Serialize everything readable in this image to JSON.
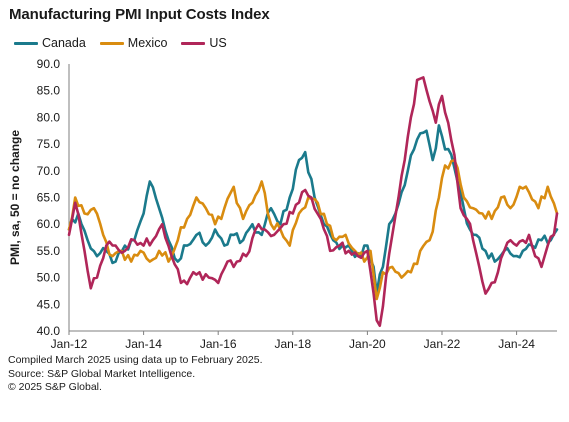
{
  "chart_data": {
    "type": "line",
    "title": "Manufacturing PMI Input Costs Index",
    "ylabel": "PMI, sa, 50 = no change",
    "xlabel": "",
    "ylim": [
      40,
      90
    ],
    "yticks": [
      "40.0",
      "45.0",
      "50.0",
      "55.0",
      "60.0",
      "65.0",
      "70.0",
      "75.0",
      "80.0",
      "85.0",
      "90.0"
    ],
    "xtick_labels": [
      "Jan-12",
      "Jan-14",
      "Jan-16",
      "Jan-18",
      "Jan-20",
      "Jan-22",
      "Jan-24"
    ],
    "x_start": "2012-01",
    "x_end": "2025-02",
    "grid": false,
    "legend_position": "top-left",
    "series": [
      {
        "name": "Canada",
        "color": "#1b7a8c",
        "key_points": [
          [
            "2012-01",
            59
          ],
          [
            "2012-04",
            62
          ],
          [
            "2012-07",
            57
          ],
          [
            "2012-10",
            54
          ],
          [
            "2013-01",
            55
          ],
          [
            "2013-04",
            53
          ],
          [
            "2013-07",
            56
          ],
          [
            "2013-10",
            57
          ],
          [
            "2014-01",
            62
          ],
          [
            "2014-03",
            68
          ],
          [
            "2014-06",
            63
          ],
          [
            "2014-09",
            57
          ],
          [
            "2014-12",
            53
          ],
          [
            "2015-03",
            56
          ],
          [
            "2015-06",
            58
          ],
          [
            "2015-09",
            56
          ],
          [
            "2015-12",
            59
          ],
          [
            "2016-03",
            56
          ],
          [
            "2016-06",
            58
          ],
          [
            "2016-09",
            57
          ],
          [
            "2016-12",
            60
          ],
          [
            "2017-03",
            58
          ],
          [
            "2017-06",
            63
          ],
          [
            "2017-09",
            60
          ],
          [
            "2017-12",
            65
          ],
          [
            "2018-03",
            72
          ],
          [
            "2018-05",
            73.5
          ],
          [
            "2018-08",
            65
          ],
          [
            "2018-11",
            60
          ],
          [
            "2019-02",
            57
          ],
          [
            "2019-05",
            56
          ],
          [
            "2019-08",
            55
          ],
          [
            "2019-11",
            54
          ],
          [
            "2020-01",
            56
          ],
          [
            "2020-03",
            52
          ],
          [
            "2020-04",
            47
          ],
          [
            "2020-06",
            52
          ],
          [
            "2020-08",
            60
          ],
          [
            "2020-10",
            62
          ],
          [
            "2020-12",
            66
          ],
          [
            "2021-02",
            70
          ],
          [
            "2021-04",
            74
          ],
          [
            "2021-06",
            77
          ],
          [
            "2021-08",
            77.5
          ],
          [
            "2021-10",
            72
          ],
          [
            "2021-12",
            78.5
          ],
          [
            "2022-02",
            74
          ],
          [
            "2022-04",
            73
          ],
          [
            "2022-06",
            68
          ],
          [
            "2022-08",
            63
          ],
          [
            "2022-10",
            59
          ],
          [
            "2022-12",
            58
          ],
          [
            "2023-03",
            55
          ],
          [
            "2023-06",
            53
          ],
          [
            "2023-09",
            55
          ],
          [
            "2023-12",
            54
          ],
          [
            "2024-03",
            55
          ],
          [
            "2024-06",
            56
          ],
          [
            "2024-09",
            57
          ],
          [
            "2024-12",
            57
          ],
          [
            "2025-02",
            59
          ]
        ]
      },
      {
        "name": "Mexico",
        "color": "#d98c10",
        "key_points": [
          [
            "2012-01",
            59
          ],
          [
            "2012-03",
            65
          ],
          [
            "2012-06",
            62
          ],
          [
            "2012-09",
            63
          ],
          [
            "2012-12",
            58
          ],
          [
            "2013-03",
            54
          ],
          [
            "2013-06",
            55
          ],
          [
            "2013-09",
            53
          ],
          [
            "2013-12",
            55
          ],
          [
            "2014-03",
            53
          ],
          [
            "2014-06",
            55
          ],
          [
            "2014-09",
            53
          ],
          [
            "2014-12",
            57
          ],
          [
            "2015-03",
            61
          ],
          [
            "2015-06",
            65
          ],
          [
            "2015-09",
            63
          ],
          [
            "2015-12",
            60
          ],
          [
            "2016-03",
            63
          ],
          [
            "2016-06",
            67
          ],
          [
            "2016-09",
            61
          ],
          [
            "2016-12",
            64
          ],
          [
            "2017-03",
            68
          ],
          [
            "2017-06",
            60
          ],
          [
            "2017-09",
            59
          ],
          [
            "2017-12",
            56
          ],
          [
            "2018-03",
            62
          ],
          [
            "2018-06",
            65
          ],
          [
            "2018-09",
            64
          ],
          [
            "2018-12",
            60
          ],
          [
            "2019-03",
            57
          ],
          [
            "2019-06",
            58
          ],
          [
            "2019-09",
            55
          ],
          [
            "2019-12",
            53
          ],
          [
            "2020-02",
            55
          ],
          [
            "2020-04",
            46
          ],
          [
            "2020-06",
            51
          ],
          [
            "2020-09",
            52
          ],
          [
            "2020-12",
            50
          ],
          [
            "2021-03",
            51
          ],
          [
            "2021-06",
            55
          ],
          [
            "2021-09",
            57
          ],
          [
            "2021-12",
            65
          ],
          [
            "2022-02",
            71
          ],
          [
            "2022-05",
            72
          ],
          [
            "2022-08",
            65
          ],
          [
            "2022-11",
            63
          ],
          [
            "2023-02",
            62
          ],
          [
            "2023-05",
            61
          ],
          [
            "2023-08",
            65
          ],
          [
            "2023-11",
            63
          ],
          [
            "2024-02",
            67
          ],
          [
            "2024-05",
            66
          ],
          [
            "2024-08",
            63
          ],
          [
            "2024-11",
            67
          ],
          [
            "2025-02",
            62
          ]
        ]
      },
      {
        "name": "US",
        "color": "#b02659",
        "key_points": [
          [
            "2012-01",
            58
          ],
          [
            "2012-03",
            64
          ],
          [
            "2012-06",
            55
          ],
          [
            "2012-08",
            48
          ],
          [
            "2012-10",
            50
          ],
          [
            "2013-01",
            56
          ],
          [
            "2013-04",
            56
          ],
          [
            "2013-07",
            55
          ],
          [
            "2013-10",
            57
          ],
          [
            "2014-01",
            56
          ],
          [
            "2014-04",
            57
          ],
          [
            "2014-07",
            60
          ],
          [
            "2014-10",
            54
          ],
          [
            "2015-01",
            49
          ],
          [
            "2015-04",
            50
          ],
          [
            "2015-07",
            51
          ],
          [
            "2015-10",
            50
          ],
          [
            "2016-01",
            49
          ],
          [
            "2016-04",
            53
          ],
          [
            "2016-07",
            53
          ],
          [
            "2016-10",
            54
          ],
          [
            "2017-01",
            59
          ],
          [
            "2017-04",
            59
          ],
          [
            "2017-07",
            58
          ],
          [
            "2017-10",
            60
          ],
          [
            "2018-01",
            62
          ],
          [
            "2018-04",
            66
          ],
          [
            "2018-07",
            65
          ],
          [
            "2018-10",
            61
          ],
          [
            "2019-01",
            55
          ],
          [
            "2019-04",
            56
          ],
          [
            "2019-07",
            55
          ],
          [
            "2019-10",
            54
          ],
          [
            "2020-01",
            55
          ],
          [
            "2020-04",
            42
          ],
          [
            "2020-05",
            41
          ],
          [
            "2020-07",
            50
          ],
          [
            "2020-09",
            58
          ],
          [
            "2020-11",
            65
          ],
          [
            "2021-01",
            72
          ],
          [
            "2021-03",
            80
          ],
          [
            "2021-05",
            87
          ],
          [
            "2021-07",
            87.5
          ],
          [
            "2021-09",
            83
          ],
          [
            "2021-11",
            79
          ],
          [
            "2022-01",
            84
          ],
          [
            "2022-03",
            79
          ],
          [
            "2022-05",
            73
          ],
          [
            "2022-07",
            63
          ],
          [
            "2022-09",
            61
          ],
          [
            "2022-11",
            57
          ],
          [
            "2023-01",
            52
          ],
          [
            "2023-03",
            47
          ],
          [
            "2023-05",
            49
          ],
          [
            "2023-07",
            51
          ],
          [
            "2023-09",
            55
          ],
          [
            "2023-11",
            57
          ],
          [
            "2024-01",
            56
          ],
          [
            "2024-03",
            57
          ],
          [
            "2024-05",
            58
          ],
          [
            "2024-07",
            54
          ],
          [
            "2024-09",
            52
          ],
          [
            "2024-11",
            56
          ],
          [
            "2025-01",
            58
          ],
          [
            "2025-02",
            62
          ]
        ]
      }
    ]
  },
  "footnotes": [
    "Compiled March 2025 using data up to February 2025.",
    "Source: S&P Global Market Intelligence.",
    "© 2025 S&P Global."
  ]
}
